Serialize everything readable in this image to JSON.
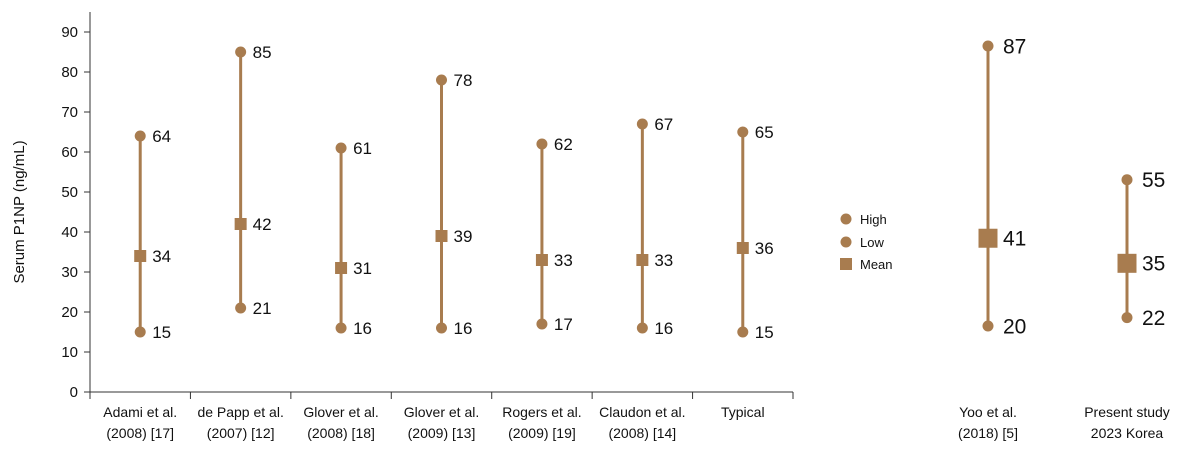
{
  "chart_data": [
    {
      "type": "range",
      "ylabel": "Serum P1NP (ng/mL)",
      "ylim": [
        0,
        90
      ],
      "yticks": [
        0,
        10,
        20,
        30,
        40,
        50,
        60,
        70,
        80,
        90
      ],
      "categories": [
        {
          "line1": "Adami et al.",
          "line2": "(2008) [17]"
        },
        {
          "line1": "de Papp et al.",
          "line2": "(2007) [12]"
        },
        {
          "line1": "Glover et al.",
          "line2": "(2008) [18]"
        },
        {
          "line1": "Glover et al.",
          "line2": "(2009) [13]"
        },
        {
          "line1": "Rogers et al.",
          "line2": "(2009) [19]"
        },
        {
          "line1": "Claudon et al.",
          "line2": "(2008) [14]"
        },
        {
          "line1": "Typical",
          "line2": ""
        }
      ],
      "high": [
        64,
        85,
        61,
        78,
        62,
        67,
        65
      ],
      "low": [
        15,
        21,
        16,
        16,
        17,
        16,
        15
      ],
      "mean": [
        34,
        42,
        31,
        39,
        33,
        33,
        36
      ],
      "high_labels": [
        "64",
        "85",
        "61",
        "78",
        "62",
        "67",
        "65"
      ],
      "low_labels": [
        "15",
        "21",
        "16",
        "16",
        "17",
        "16",
        "15"
      ],
      "mean_labels": [
        "34",
        "42",
        "31",
        "39",
        "33",
        "33",
        "36"
      ],
      "legend": {
        "high": "High",
        "low": "Low",
        "mean": "Mean"
      },
      "color": "#a87c4f"
    },
    {
      "type": "range",
      "categories": [
        {
          "line1": "Yoo et al.",
          "line2": "(2018) [5]"
        },
        {
          "line1": "Present study",
          "line2": "2023 Korea"
        }
      ],
      "high": [
        87,
        55
      ],
      "low": [
        20,
        22
      ],
      "mean": [
        41,
        35
      ],
      "high_labels": [
        "87",
        "55"
      ],
      "low_labels": [
        "20",
        "22"
      ],
      "mean_labels": [
        "41",
        "35"
      ],
      "color": "#a87c4f"
    }
  ]
}
